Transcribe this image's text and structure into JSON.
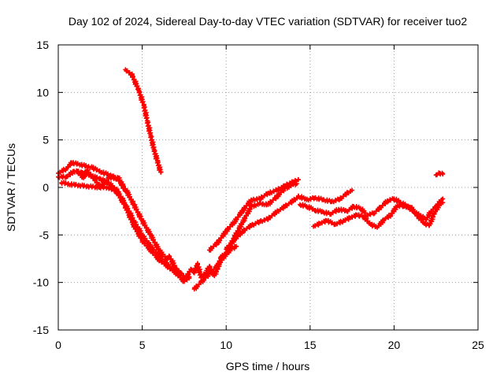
{
  "chart_data": {
    "type": "scatter",
    "title": "Day 102 of 2024, Sidereal Day-to-day VTEC variation (SDTVAR) for receiver tuo2",
    "xlabel": "GPS time / hours",
    "ylabel": "SDTVAR / TECUs",
    "xlim": [
      0,
      25
    ],
    "ylim": [
      -15,
      15
    ],
    "xticks": [
      "0",
      "5",
      "10",
      "15",
      "20",
      "25"
    ],
    "yticks": [
      "-15",
      "-10",
      "-5",
      "0",
      "5",
      "10",
      "15"
    ],
    "grid": true,
    "marker": "plus",
    "color": "#ff0000",
    "series": [
      {
        "name": "track-1",
        "points": [
          [
            0.0,
            1.5
          ],
          [
            0.5,
            2.0
          ],
          [
            0.8,
            2.6
          ],
          [
            1.3,
            2.4
          ],
          [
            2.0,
            2.1
          ],
          [
            2.6,
            1.6
          ],
          [
            3.2,
            1.2
          ],
          [
            3.7,
            0.6
          ],
          [
            4.1,
            -0.5
          ],
          [
            4.5,
            -1.8
          ],
          [
            5.0,
            -3.5
          ],
          [
            5.5,
            -5.0
          ],
          [
            6.0,
            -6.6
          ],
          [
            6.5,
            -7.6
          ]
        ]
      },
      {
        "name": "track-2",
        "points": [
          [
            0.0,
            1.1
          ],
          [
            0.5,
            1.1
          ],
          [
            0.9,
            1.7
          ],
          [
            1.4,
            1.6
          ],
          [
            2.0,
            1.2
          ],
          [
            2.5,
            0.9
          ],
          [
            3.0,
            0.5
          ],
          [
            3.5,
            -0.3
          ],
          [
            4.0,
            -1.8
          ],
          [
            4.5,
            -3.5
          ],
          [
            5.0,
            -5.0
          ],
          [
            5.5,
            -6.2
          ],
          [
            6.0,
            -7.2
          ],
          [
            6.6,
            -8.3
          ],
          [
            7.0,
            -8.7
          ]
        ]
      },
      {
        "name": "track-3",
        "points": [
          [
            0.2,
            0.5
          ],
          [
            0.8,
            0.3
          ],
          [
            1.3,
            0.2
          ],
          [
            1.8,
            0.1
          ],
          [
            2.5,
            0.0
          ],
          [
            3.0,
            0.0
          ],
          [
            3.5,
            -0.5
          ],
          [
            4.0,
            -2.0
          ],
          [
            4.5,
            -4.0
          ],
          [
            5.0,
            -5.6
          ],
          [
            5.5,
            -6.6
          ],
          [
            6.0,
            -7.6
          ],
          [
            6.5,
            -8.3
          ],
          [
            7.0,
            -9.0
          ],
          [
            7.5,
            -9.9
          ],
          [
            7.8,
            -9.4
          ]
        ]
      },
      {
        "name": "track-4",
        "points": [
          [
            1.1,
            1.7
          ],
          [
            1.5,
            1.0
          ],
          [
            1.7,
            1.8
          ],
          [
            2.1,
            1.0
          ],
          [
            2.5,
            0.0
          ],
          [
            3.0,
            1.0
          ],
          [
            3.6,
            1.0
          ],
          [
            3.8,
            0.2
          ],
          [
            4.0,
            -0.4
          ]
        ]
      },
      {
        "name": "track-5",
        "points": [
          [
            4.0,
            12.4
          ],
          [
            4.4,
            11.8
          ],
          [
            4.8,
            10.2
          ],
          [
            5.1,
            8.6
          ],
          [
            5.3,
            7.0
          ],
          [
            5.5,
            5.5
          ],
          [
            5.7,
            4.0
          ],
          [
            5.9,
            2.8
          ],
          [
            6.1,
            1.6
          ]
        ]
      },
      {
        "name": "track-6",
        "points": [
          [
            6.6,
            -7.2
          ],
          [
            7.0,
            -8.5
          ],
          [
            7.3,
            -9.0
          ],
          [
            7.6,
            -9.6
          ],
          [
            7.9,
            -8.6
          ],
          [
            8.1,
            -9.0
          ],
          [
            8.3,
            -8.0
          ],
          [
            8.5,
            -9.5
          ],
          [
            8.8,
            -9.0
          ],
          [
            9.0,
            -8.3
          ],
          [
            9.3,
            -9.3
          ],
          [
            9.5,
            -8.5
          ],
          [
            9.7,
            -7.3
          ],
          [
            10.0,
            -7.0
          ],
          [
            10.3,
            -6.5
          ],
          [
            10.6,
            -6.2
          ]
        ]
      },
      {
        "name": "track-7",
        "points": [
          [
            8.1,
            -10.7
          ],
          [
            8.5,
            -10.0
          ],
          [
            9.0,
            -9.1
          ],
          [
            9.5,
            -8.2
          ],
          [
            10.0,
            -7.0
          ],
          [
            10.5,
            -5.2
          ],
          [
            11.0,
            -3.6
          ],
          [
            11.5,
            -2.0
          ],
          [
            12.0,
            -1.7
          ],
          [
            12.5,
            -1.8
          ],
          [
            13.0,
            -1.0
          ],
          [
            13.5,
            -0.1
          ],
          [
            14.0,
            0.3
          ],
          [
            14.2,
            0.4
          ]
        ]
      },
      {
        "name": "track-8",
        "points": [
          [
            9.0,
            -6.6
          ],
          [
            9.5,
            -5.8
          ],
          [
            10.0,
            -4.6
          ],
          [
            10.5,
            -3.6
          ],
          [
            11.0,
            -2.4
          ],
          [
            11.5,
            -1.3
          ],
          [
            12.0,
            -1.2
          ],
          [
            12.5,
            -0.6
          ],
          [
            13.0,
            -0.3
          ],
          [
            13.5,
            0.2
          ],
          [
            14.0,
            0.6
          ],
          [
            14.3,
            0.8
          ]
        ]
      },
      {
        "name": "track-9",
        "points": [
          [
            10.0,
            -6.5
          ],
          [
            10.5,
            -5.5
          ],
          [
            11.0,
            -4.6
          ],
          [
            11.5,
            -4.0
          ],
          [
            12.0,
            -3.6
          ],
          [
            12.5,
            -3.3
          ],
          [
            13.0,
            -2.6
          ],
          [
            13.5,
            -2.0
          ],
          [
            14.0,
            -1.4
          ],
          [
            14.3,
            -1.0
          ]
        ]
      },
      {
        "name": "track-10",
        "points": [
          [
            14.3,
            -0.9
          ],
          [
            14.8,
            -1.3
          ],
          [
            15.3,
            -1.1
          ],
          [
            15.8,
            -1.3
          ],
          [
            16.3,
            -1.5
          ],
          [
            16.8,
            -1.2
          ],
          [
            17.2,
            -0.6
          ],
          [
            17.5,
            -0.3
          ]
        ]
      },
      {
        "name": "track-11",
        "points": [
          [
            14.4,
            -1.8
          ],
          [
            14.8,
            -2.0
          ],
          [
            15.3,
            -2.4
          ],
          [
            15.8,
            -2.6
          ],
          [
            16.2,
            -2.8
          ],
          [
            16.7,
            -2.3
          ],
          [
            17.2,
            -2.5
          ],
          [
            17.6,
            -2.0
          ],
          [
            18.0,
            -2.2
          ],
          [
            18.4,
            -2.9
          ],
          [
            18.8,
            -2.7
          ],
          [
            19.2,
            -2.1
          ],
          [
            19.6,
            -1.4
          ],
          [
            20.0,
            -1.2
          ],
          [
            20.4,
            -1.6
          ],
          [
            20.8,
            -2.0
          ],
          [
            21.2,
            -2.6
          ],
          [
            21.6,
            -3.0
          ],
          [
            21.9,
            -3.4
          ],
          [
            22.2,
            -2.5
          ],
          [
            22.5,
            -2.0
          ],
          [
            22.7,
            -1.5
          ],
          [
            22.9,
            -1.2
          ]
        ]
      },
      {
        "name": "track-12",
        "points": [
          [
            15.2,
            -4.1
          ],
          [
            15.6,
            -3.8
          ],
          [
            16.0,
            -3.5
          ],
          [
            16.5,
            -3.9
          ],
          [
            17.0,
            -3.5
          ],
          [
            17.4,
            -3.2
          ],
          [
            17.8,
            -2.9
          ],
          [
            18.2,
            -3.1
          ],
          [
            18.6,
            -3.9
          ],
          [
            19.0,
            -4.2
          ],
          [
            19.4,
            -3.4
          ],
          [
            19.8,
            -2.9
          ],
          [
            20.2,
            -1.9
          ],
          [
            20.6,
            -2.0
          ],
          [
            21.0,
            -2.1
          ],
          [
            21.4,
            -3.0
          ],
          [
            21.8,
            -3.8
          ],
          [
            22.1,
            -4.0
          ],
          [
            22.4,
            -2.7
          ],
          [
            22.7,
            -1.8
          ],
          [
            22.9,
            -1.6
          ]
        ]
      },
      {
        "name": "track-13",
        "points": [
          [
            22.5,
            1.3
          ],
          [
            22.7,
            1.5
          ],
          [
            22.9,
            1.4
          ]
        ]
      }
    ]
  }
}
